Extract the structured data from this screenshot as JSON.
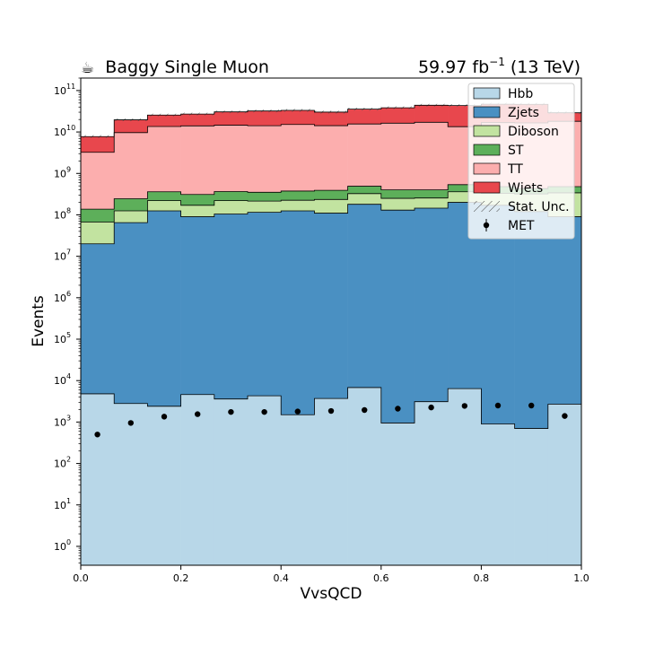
{
  "header": {
    "title_icon": "coffee-cup-icon",
    "title_glyph": "☕",
    "title": "Baggy Single Muon",
    "lumi_value": "59.97 fb",
    "lumi_exp": "−1",
    "lumi_energy": " (13 TeV)"
  },
  "chart_data": {
    "type": "bar",
    "stacked": true,
    "log_y": true,
    "xlabel": "VvsQCD",
    "ylabel": "Events",
    "xlim": [
      0,
      1
    ],
    "ylim": [
      0.35,
      200000000000
    ],
    "x_ticks": [
      "0.0",
      "0.2",
      "0.4",
      "0.6",
      "0.8",
      "1.0"
    ],
    "y_ticks": [
      {
        "value": 1,
        "base": "10",
        "exp": "0"
      },
      {
        "value": 10,
        "base": "10",
        "exp": "1"
      },
      {
        "value": 100,
        "base": "10",
        "exp": "2"
      },
      {
        "value": 1000,
        "base": "10",
        "exp": "3"
      },
      {
        "value": 10000,
        "base": "10",
        "exp": "4"
      },
      {
        "value": 100000,
        "base": "10",
        "exp": "5"
      },
      {
        "value": 1000000,
        "base": "10",
        "exp": "6"
      },
      {
        "value": 10000000,
        "base": "10",
        "exp": "7"
      },
      {
        "value": 100000000,
        "base": "10",
        "exp": "8"
      },
      {
        "value": 1000000000,
        "base": "10",
        "exp": "9"
      },
      {
        "value": 10000000000,
        "base": "10",
        "exp": "10"
      },
      {
        "value": 100000000000,
        "base": "10",
        "exp": "11"
      }
    ],
    "bin_edges": [
      0.0,
      0.0667,
      0.1333,
      0.2,
      0.2667,
      0.3333,
      0.4,
      0.4667,
      0.5333,
      0.6,
      0.6667,
      0.7333,
      0.8,
      0.8667,
      0.9333,
      1.0
    ],
    "grid": false,
    "legend_position": "top-right",
    "series": [
      {
        "name": "Hbb",
        "color": "#b8d7e8",
        "values": [
          4800,
          2800,
          2400,
          4600,
          3600,
          4300,
          1500,
          3700,
          6800,
          950,
          3100,
          6400,
          900,
          700,
          2700
        ]
      },
      {
        "name": "Zjets",
        "color": "#4a90c2",
        "values": [
          20000000,
          65000000,
          125000000,
          90000000,
          105000000,
          115000000,
          125000000,
          110000000,
          180000000,
          130000000,
          145000000,
          200000000,
          170000000,
          120000000,
          90000000
        ]
      },
      {
        "name": "Diboson",
        "color": "#c2e3a0",
        "values": [
          47000000,
          60000000,
          95000000,
          80000000,
          115000000,
          100000000,
          100000000,
          125000000,
          145000000,
          120000000,
          110000000,
          160000000,
          160000000,
          200000000,
          250000000
        ]
      },
      {
        "name": "ST",
        "color": "#5daf5a",
        "values": [
          70000000,
          120000000,
          140000000,
          140000000,
          145000000,
          135000000,
          150000000,
          155000000,
          165000000,
          150000000,
          145000000,
          175000000,
          150000000,
          110000000,
          140000000
        ]
      },
      {
        "name": "TT",
        "color": "#fcaeae",
        "values": [
          3100000000,
          9400000000,
          13200000000,
          13700000000,
          14200000000,
          13800000000,
          14800000000,
          13800000000,
          15100000000,
          15900000000,
          16700000000,
          12900000000,
          16300000000,
          16100000000,
          17600000000
        ]
      },
      {
        "name": "Wjets",
        "color": "#e8474d",
        "values": [
          4500000000,
          10000000000,
          12000000000,
          13000000000,
          16000000000,
          18000000000,
          18000000000,
          16000000000,
          20000000000,
          22000000000,
          27000000000,
          30000000000,
          30000000000,
          30000000000,
          11000000000
        ]
      }
    ],
    "stat_unc": {
      "name": "Stat. Unc."
    },
    "data_points": {
      "name": "MET",
      "x": [
        0.0333,
        0.1,
        0.1667,
        0.2333,
        0.3,
        0.3667,
        0.4333,
        0.5,
        0.5667,
        0.6333,
        0.7,
        0.7667,
        0.8333,
        0.9,
        0.9667
      ],
      "y": [
        500,
        950,
        1350,
        1550,
        1750,
        1750,
        1800,
        1850,
        1950,
        2100,
        2250,
        2450,
        2500,
        2500,
        1400
      ]
    }
  }
}
